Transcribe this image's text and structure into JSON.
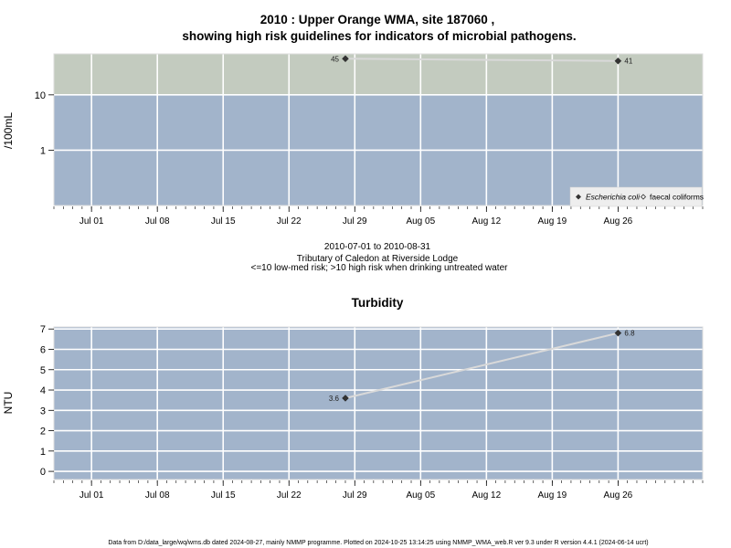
{
  "chart_data": [
    {
      "type": "scatter",
      "title_line1": "2010 : Upper Orange WMA, site 187060 ,",
      "title_line2": "showing high risk guidelines for indicators of microbial pathogens.",
      "ylabel": "/100mL",
      "y_scale": "log",
      "ylim": [
        0.1,
        55
      ],
      "y_ticks": [
        1,
        10
      ],
      "y_tick_labels": [
        "1",
        "10"
      ],
      "threshold": 10,
      "xlim": [
        "2010-06-27",
        "2010-09-04"
      ],
      "x_ticks": [
        "2010-07-01",
        "2010-07-08",
        "2010-07-15",
        "2010-07-22",
        "2010-07-29",
        "2010-08-05",
        "2010-08-12",
        "2010-08-19",
        "2010-08-26"
      ],
      "x_tick_labels": [
        "Jul 01",
        "Jul 08",
        "Jul 15",
        "Jul 22",
        "Jul 29",
        "Aug 05",
        "Aug 12",
        "Aug 19",
        "Aug 26"
      ],
      "grid": true,
      "series": [
        {
          "name": "Escherichia coli",
          "marker": "filled-diamond",
          "x": [
            "2010-07-28",
            "2010-08-26"
          ],
          "y": [
            45,
            41
          ],
          "labels": [
            "45",
            "41"
          ]
        }
      ],
      "legend": {
        "position": "bottom-right",
        "entries": [
          "Escherichia coli",
          "faecal coliforms"
        ]
      },
      "subtitle_lines": [
        "2010-07-01 to 2010-08-31",
        "Tributary of Caledon at Riverside Lodge",
        "<=10 low-med risk; >10 high risk when drinking untreated water"
      ],
      "colors": {
        "low_band": "#a2b4cb",
        "high_band": "#c3cbbf",
        "grid": "#ffffff",
        "line": "#d9d9d9",
        "marker": "#333333"
      }
    },
    {
      "type": "line",
      "title": "Turbidity",
      "ylabel": "NTU",
      "ylim": [
        -0.4,
        7.1
      ],
      "y_ticks": [
        0,
        1,
        2,
        3,
        4,
        5,
        6,
        7
      ],
      "y_tick_labels": [
        "0",
        "1",
        "2",
        "3",
        "4",
        "5",
        "6",
        "7"
      ],
      "xlim": [
        "2010-06-27",
        "2010-09-04"
      ],
      "x_ticks": [
        "2010-07-01",
        "2010-07-08",
        "2010-07-15",
        "2010-07-22",
        "2010-07-29",
        "2010-08-05",
        "2010-08-12",
        "2010-08-19",
        "2010-08-26"
      ],
      "x_tick_labels": [
        "Jul 01",
        "Jul 08",
        "Jul 15",
        "Jul 22",
        "Jul 29",
        "Aug 05",
        "Aug 12",
        "Aug 19",
        "Aug 26"
      ],
      "grid": true,
      "series": [
        {
          "x": [
            "2010-07-28",
            "2010-08-26"
          ],
          "y": [
            3.6,
            6.8
          ],
          "labels": [
            "3.6",
            "6.8"
          ]
        }
      ],
      "colors": {
        "background": "#a2b4cb",
        "grid": "#ffffff",
        "line": "#d9d9d9",
        "marker": "#333333"
      }
    }
  ],
  "footer": "Data from D:/data_large/wq/wms.db dated 2024-08-27, mainly NMMP programme. Plotted on 2024-10-25 13:14:25 using NMMP_WMA_web.R ver 9.3 under R version 4.4.1 (2024-06-14 ucrt)"
}
